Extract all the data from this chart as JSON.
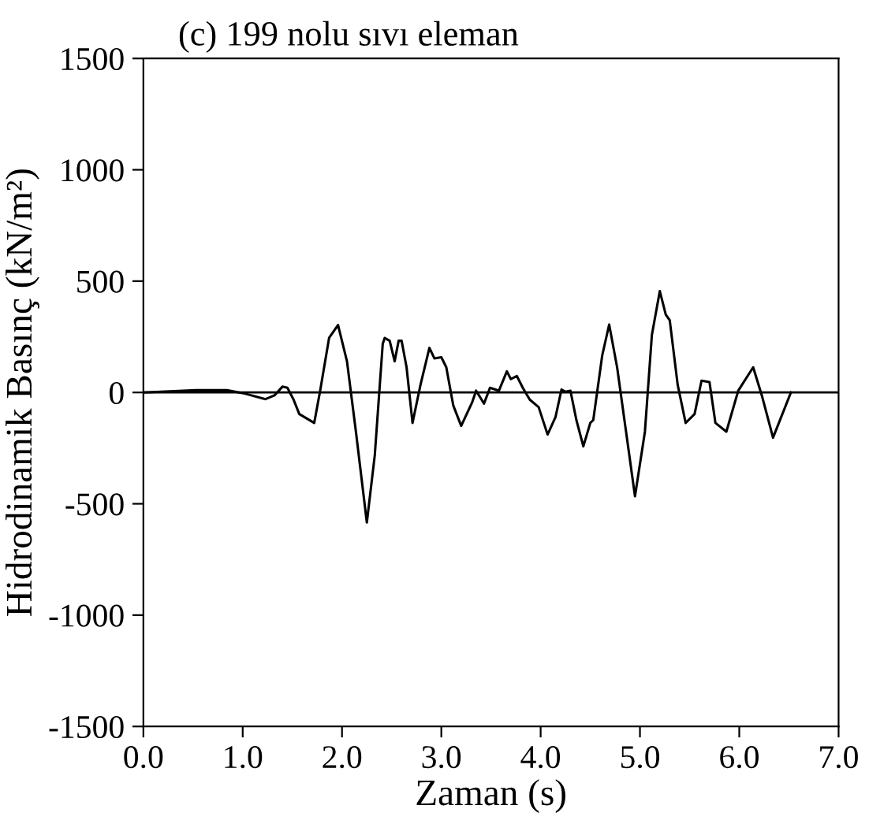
{
  "chart_data": {
    "type": "line",
    "title": "(c) 199 nolu sıvı eleman",
    "xlabel": "Zaman (s)",
    "ylabel": "Hidrodinamik Basınç (kN/m²)",
    "xlim": [
      0,
      7
    ],
    "xticks": [
      {
        "value": 0,
        "label": "0.0"
      },
      {
        "value": 1,
        "label": "1.0"
      },
      {
        "value": 2,
        "label": "2.0"
      },
      {
        "value": 3,
        "label": "3.0"
      },
      {
        "value": 4,
        "label": "4.0"
      },
      {
        "value": 5,
        "label": "5.0"
      },
      {
        "value": 6,
        "label": "6.0"
      },
      {
        "value": 7,
        "label": "7.0"
      }
    ],
    "ylim": [
      -1500,
      1500
    ],
    "yticks": [
      -1500,
      -1000,
      -500,
      0,
      500,
      1000,
      1500
    ],
    "ref_lines": [
      {
        "axis": "y",
        "value": 0,
        "color": "#000000"
      }
    ],
    "grid": false,
    "legend": false,
    "series": [
      {
        "color": "#000000",
        "x": [
          0,
          0.53,
          0.84,
          1.02,
          1.23,
          1.32,
          1.4,
          1.45,
          1.51,
          1.57,
          1.72,
          1.78,
          1.87,
          1.96,
          2.05,
          2.14,
          2.25,
          2.33,
          2.41,
          2.43,
          2.48,
          2.53,
          2.57,
          2.6,
          2.65,
          2.71,
          2.79,
          2.88,
          2.93,
          3.0,
          3.05,
          3.12,
          3.2,
          3.31,
          3.35,
          3.43,
          3.49,
          3.58,
          3.66,
          3.7,
          3.76,
          3.82,
          3.89,
          3.98,
          4.07,
          4.15,
          4.21,
          4.25,
          4.3,
          4.36,
          4.43,
          4.5,
          4.53,
          4.62,
          4.69,
          4.77,
          4.86,
          4.95,
          5.05,
          5.12,
          5.2,
          5.26,
          5.3,
          5.38,
          5.46,
          5.55,
          5.62,
          5.7,
          5.76,
          5.87,
          5.99,
          6.14,
          6.23,
          6.34,
          6.52
        ],
        "values": [
          0,
          10,
          10,
          -5,
          -30,
          -13,
          26,
          21,
          -30,
          -97,
          -137,
          8,
          245,
          303,
          140,
          -176,
          -584,
          -282,
          218,
          245,
          232,
          140,
          232,
          232,
          113,
          -137,
          34,
          200,
          153,
          158,
          113,
          -58,
          -150,
          -45,
          8,
          -50,
          21,
          8,
          95,
          60,
          74,
          21,
          -32,
          -66,
          -189,
          -110,
          13,
          3,
          8,
          -124,
          -242,
          -137,
          -124,
          166,
          305,
          113,
          -176,
          -466,
          -176,
          258,
          455,
          350,
          324,
          34,
          -137,
          -97,
          53,
          47,
          -137,
          -176,
          8,
          113,
          -18,
          -203,
          0
        ]
      }
    ]
  }
}
